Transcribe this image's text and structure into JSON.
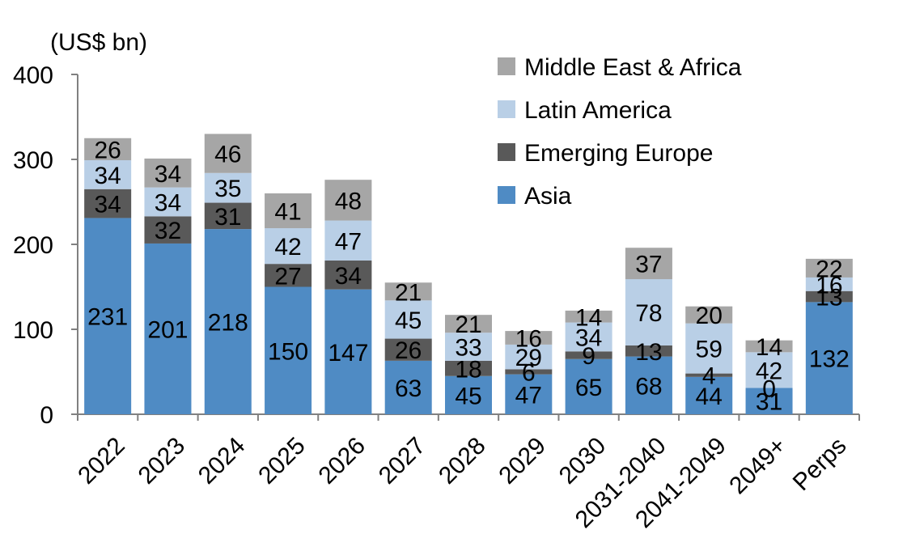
{
  "chart_data": {
    "type": "bar",
    "stacked": true,
    "unit_label": "(US$ bn)",
    "categories": [
      "2022",
      "2023",
      "2024",
      "2025",
      "2026",
      "2027",
      "2028",
      "2029",
      "2030",
      "2031-2040",
      "2041-2049",
      "2049+",
      "Perps"
    ],
    "series": [
      {
        "name": "Asia",
        "color": "#4f8bc4",
        "values": [
          231,
          201,
          218,
          150,
          147,
          63,
          45,
          47,
          65,
          68,
          44,
          31,
          132
        ]
      },
      {
        "name": "Emerging Europe",
        "color": "#595959",
        "values": [
          34,
          32,
          31,
          27,
          34,
          26,
          18,
          6,
          9,
          13,
          4,
          0,
          13
        ]
      },
      {
        "name": "Latin America",
        "color": "#b9cfe6",
        "values": [
          34,
          34,
          35,
          42,
          47,
          45,
          33,
          29,
          34,
          78,
          59,
          42,
          16
        ]
      },
      {
        "name": "Middle East & Africa",
        "color": "#a6a6a6",
        "values": [
          26,
          34,
          46,
          41,
          48,
          21,
          21,
          16,
          14,
          37,
          20,
          14,
          22
        ]
      }
    ],
    "ylim": [
      0,
      400
    ],
    "yticks": [
      0,
      100,
      200,
      300,
      400
    ],
    "legend_position": "top-right",
    "grid": false
  }
}
